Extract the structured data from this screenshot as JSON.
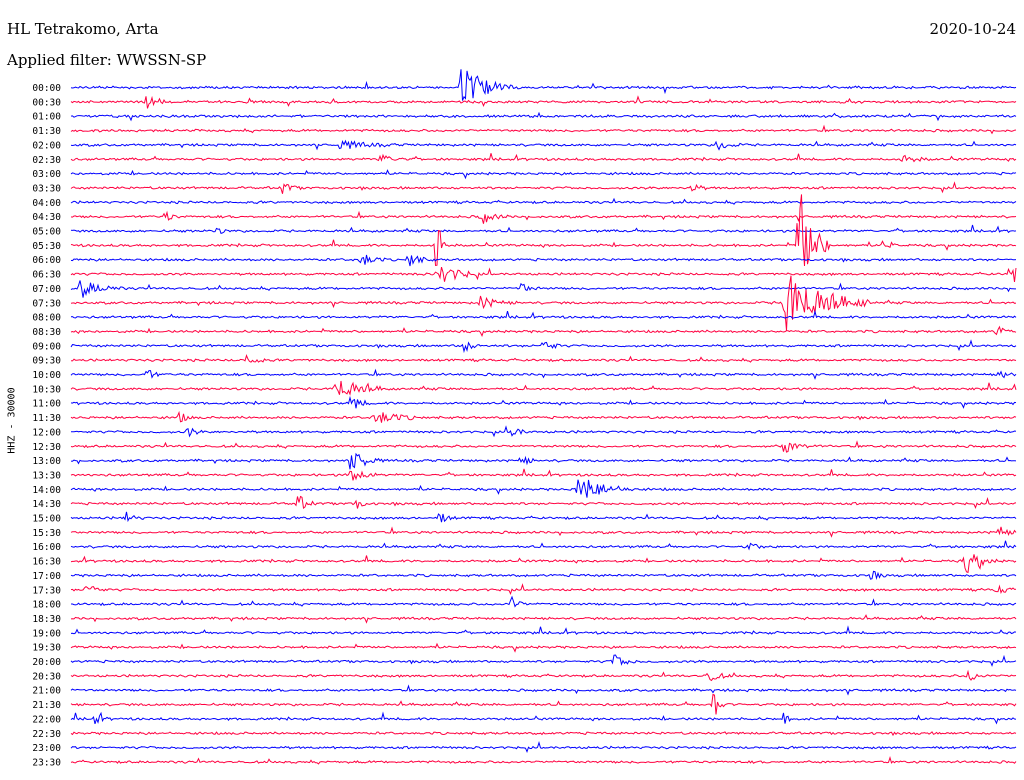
{
  "header": {
    "station": "HL Tetrakomo, Arta",
    "date": "2020-10-24",
    "filter": "Applied filter: WWSSN-SP"
  },
  "chart_data": {
    "type": "line",
    "title": "HL Tetrakomo, Arta",
    "ylabel": "HHZ - 30000",
    "colors": [
      "#0000ff",
      "#ff0040"
    ],
    "rows": [
      "00:00",
      "00:30",
      "01:00",
      "01:30",
      "02:00",
      "02:30",
      "03:00",
      "03:30",
      "04:00",
      "04:30",
      "05:00",
      "05:30",
      "06:00",
      "06:30",
      "07:00",
      "07:30",
      "08:00",
      "08:30",
      "09:00",
      "09:30",
      "10:00",
      "10:30",
      "11:00",
      "11:30",
      "12:00",
      "12:30",
      "13:00",
      "13:30",
      "14:00",
      "14:30",
      "15:00",
      "15:30",
      "16:00",
      "16:30",
      "17:00",
      "17:30",
      "18:00",
      "18:30",
      "19:00",
      "19:30",
      "20:00",
      "20:30",
      "21:00",
      "21:30",
      "22:00",
      "22:30",
      "23:00",
      "23:30"
    ],
    "row_minutes": 30,
    "events": [
      {
        "row": 0,
        "minute": 12.4,
        "amp": 28,
        "dur": 1.6
      },
      {
        "row": 1,
        "minute": 2.4,
        "amp": 9,
        "dur": 0.7
      },
      {
        "row": 4,
        "minute": 8.5,
        "amp": 5,
        "dur": 1.8
      },
      {
        "row": 4,
        "minute": 20.5,
        "amp": 7,
        "dur": 0.8
      },
      {
        "row": 5,
        "minute": 9.8,
        "amp": 5,
        "dur": 1.0
      },
      {
        "row": 5,
        "minute": 26.4,
        "amp": 4,
        "dur": 1.0
      },
      {
        "row": 7,
        "minute": 6.7,
        "amp": 7,
        "dur": 0.6
      },
      {
        "row": 7,
        "minute": 19.7,
        "amp": 7,
        "dur": 0.5
      },
      {
        "row": 9,
        "minute": 3.0,
        "amp": 6,
        "dur": 0.5
      },
      {
        "row": 9,
        "minute": 13.0,
        "amp": 8,
        "dur": 0.9
      },
      {
        "row": 10,
        "minute": 4.6,
        "amp": 5,
        "dur": 0.4
      },
      {
        "row": 11,
        "minute": 11.6,
        "amp": 45,
        "dur": 0.3
      },
      {
        "row": 11,
        "minute": 23.1,
        "amp": 70,
        "dur": 1.0
      },
      {
        "row": 11,
        "minute": 25.8,
        "amp": 10,
        "dur": 0.4
      },
      {
        "row": 12,
        "minute": 9.2,
        "amp": 8,
        "dur": 0.8
      },
      {
        "row": 12,
        "minute": 10.7,
        "amp": 8,
        "dur": 0.8
      },
      {
        "row": 13,
        "minute": 11.6,
        "amp": 14,
        "dur": 1.4
      },
      {
        "row": 13,
        "minute": 29.8,
        "amp": 12,
        "dur": 1.0
      },
      {
        "row": 14,
        "minute": 0.3,
        "amp": 10,
        "dur": 1.4
      },
      {
        "row": 14,
        "minute": 14.3,
        "amp": 6,
        "dur": 0.6
      },
      {
        "row": 15,
        "minute": 13.0,
        "amp": 6,
        "dur": 1.2
      },
      {
        "row": 15,
        "minute": 22.6,
        "amp": 38,
        "dur": 2.8
      },
      {
        "row": 17,
        "minute": 29.4,
        "amp": 6,
        "dur": 0.5
      },
      {
        "row": 18,
        "minute": 12.4,
        "amp": 9,
        "dur": 0.6
      },
      {
        "row": 18,
        "minute": 15.0,
        "amp": 8,
        "dur": 0.6
      },
      {
        "row": 19,
        "minute": 5.6,
        "amp": 8,
        "dur": 0.6
      },
      {
        "row": 20,
        "minute": 2.4,
        "amp": 7,
        "dur": 0.5
      },
      {
        "row": 20,
        "minute": 29.5,
        "amp": 8,
        "dur": 0.5
      },
      {
        "row": 21,
        "minute": 8.4,
        "amp": 14,
        "dur": 1.6
      },
      {
        "row": 22,
        "minute": 9.0,
        "amp": 8,
        "dur": 0.5
      },
      {
        "row": 23,
        "minute": 3.4,
        "amp": 7,
        "dur": 0.5
      },
      {
        "row": 23,
        "minute": 9.6,
        "amp": 8,
        "dur": 1.6
      },
      {
        "row": 24,
        "minute": 3.7,
        "amp": 6,
        "dur": 0.5
      },
      {
        "row": 24,
        "minute": 14.0,
        "amp": 7,
        "dur": 0.6
      },
      {
        "row": 25,
        "minute": 22.6,
        "amp": 7,
        "dur": 1.2
      },
      {
        "row": 26,
        "minute": 8.9,
        "amp": 14,
        "dur": 1.0
      },
      {
        "row": 26,
        "minute": 14.3,
        "amp": 7,
        "dur": 0.5
      },
      {
        "row": 27,
        "minute": 8.9,
        "amp": 12,
        "dur": 0.8
      },
      {
        "row": 28,
        "minute": 16.1,
        "amp": 16,
        "dur": 1.8
      },
      {
        "row": 29,
        "minute": 7.2,
        "amp": 10,
        "dur": 0.6
      },
      {
        "row": 29,
        "minute": 9.0,
        "amp": 8,
        "dur": 0.5
      },
      {
        "row": 30,
        "minute": 1.7,
        "amp": 7,
        "dur": 0.6
      },
      {
        "row": 30,
        "minute": 11.7,
        "amp": 7,
        "dur": 0.5
      },
      {
        "row": 31,
        "minute": 29.4,
        "amp": 9,
        "dur": 0.6
      },
      {
        "row": 32,
        "minute": 21.5,
        "amp": 6,
        "dur": 0.5
      },
      {
        "row": 33,
        "minute": 28.4,
        "amp": 13,
        "dur": 1.0
      },
      {
        "row": 34,
        "minute": 25.4,
        "amp": 6,
        "dur": 0.5
      },
      {
        "row": 35,
        "minute": 0.5,
        "amp": 10,
        "dur": 0.6
      },
      {
        "row": 35,
        "minute": 29.4,
        "amp": 7,
        "dur": 0.5
      },
      {
        "row": 36,
        "minute": 14.0,
        "amp": 8,
        "dur": 0.5
      },
      {
        "row": 40,
        "minute": 17.2,
        "amp": 8,
        "dur": 0.8
      },
      {
        "row": 41,
        "minute": 20.2,
        "amp": 7,
        "dur": 0.8
      },
      {
        "row": 41,
        "minute": 28.5,
        "amp": 7,
        "dur": 0.6
      },
      {
        "row": 43,
        "minute": 20.4,
        "amp": 18,
        "dur": 0.4
      },
      {
        "row": 44,
        "minute": 0.7,
        "amp": 7,
        "dur": 0.5
      },
      {
        "row": 44,
        "minute": 22.6,
        "amp": 6,
        "dur": 0.4
      }
    ]
  }
}
